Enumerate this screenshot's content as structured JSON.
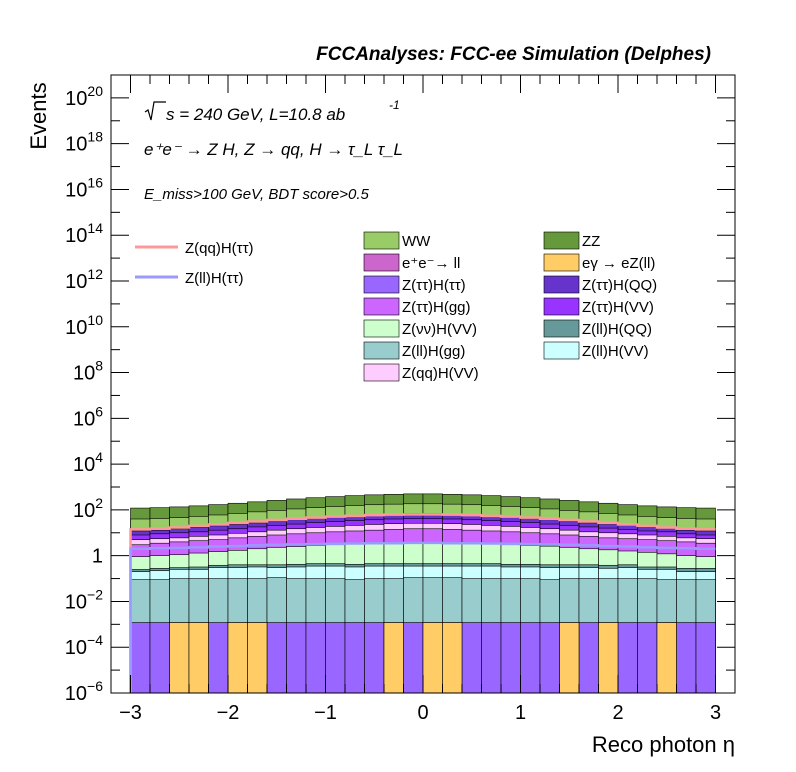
{
  "header_title": "FCCAnalyses: FCC-ee Simulation (Delphes)",
  "info": {
    "energy": "s = 240 GeV, L=10.8 ab",
    "energy_sup": "-1",
    "process": "e⁺e⁻ → Z H, Z → qq, H → τ_L τ_L",
    "cuts": "E_miss>100 GeV, BDT score>0.5"
  },
  "colors": {
    "WW": "#99cc66",
    "ZZ": "#66993b",
    "ee_ll": "#cc66cc",
    "egamma_eZll": "#ffcc66",
    "ztautau_htautau": "#9966ff",
    "ztautau_hQQ": "#6633cc",
    "ztautau_hgg": "#cc66ff",
    "ztautau_hVV": "#9933ff",
    "znunu_hVV": "#ccffcc",
    "zll_hQQ": "#669999",
    "zll_hgg": "#99cccc",
    "zll_hVV": "#ccffff",
    "zqq_hVV": "#ffccff",
    "sig_qq": "#ff9999",
    "sig_ll": "#9999ff"
  },
  "chart_data": {
    "type": "bar",
    "title": "FCCAnalyses: FCC-ee Simulation (Delphes)",
    "xlabel": "Reco photon η",
    "ylabel": "Events",
    "xlim": [
      -3.2,
      3.2
    ],
    "ylim": [
      1e-06,
      1e+21
    ],
    "log_y": true,
    "stacked": true,
    "bin_edges": [
      -3.0,
      -2.8,
      -2.6,
      -2.4,
      -2.2,
      -2.0,
      -1.8,
      -1.6,
      -1.4,
      -1.2,
      -1.0,
      -0.8,
      -0.6,
      -0.4,
      -0.2,
      0.0,
      0.2,
      0.4,
      0.6,
      0.8,
      1.0,
      1.2,
      1.4,
      1.6,
      1.8,
      2.0,
      2.2,
      2.4,
      2.6,
      2.8,
      3.0
    ],
    "x_ticks": [
      -3,
      -2,
      -1,
      0,
      1,
      2,
      3
    ],
    "x_tick_labels": [
      "−3",
      "−2",
      "−1",
      "0",
      "1",
      "2",
      "3"
    ],
    "y_ticks_major": [
      1e-06,
      0.0001,
      0.01,
      1,
      100.0,
      10000.0,
      1000000.0,
      100000000.0,
      10000000000.0,
      1000000000000.0,
      100000000000000.0,
      1e+16,
      1e+18,
      1e+20
    ],
    "y_tick_labels": [
      {
        "base": "10",
        "exp": "−6"
      },
      {
        "base": "10",
        "exp": "−4"
      },
      {
        "base": "10",
        "exp": "−2"
      },
      {
        "base": "1",
        "exp": ""
      },
      {
        "base": "10",
        "exp": "2"
      },
      {
        "base": "10",
        "exp": "4"
      },
      {
        "base": "10",
        "exp": "6"
      },
      {
        "base": "10",
        "exp": "8"
      },
      {
        "base": "10",
        "exp": "10"
      },
      {
        "base": "10",
        "exp": "12"
      },
      {
        "base": "10",
        "exp": "14"
      },
      {
        "base": "10",
        "exp": "16"
      },
      {
        "base": "10",
        "exp": "18"
      },
      {
        "base": "10",
        "exp": "20"
      }
    ],
    "stack_cumulative_tops": [
      {
        "name": "egamma → eZ(ll)",
        "color_key": "egamma_eZll",
        "values": [
          1e-06,
          1e-06,
          0.0012,
          0.0012,
          1e-06,
          0.0012,
          0.0012,
          1e-06,
          1e-06,
          1e-06,
          1e-06,
          1e-06,
          1e-06,
          0.0012,
          1e-06,
          0.0012,
          0.0012,
          1e-06,
          1e-06,
          1e-06,
          1e-06,
          1e-06,
          0.0012,
          1e-06,
          0.0012,
          1e-06,
          1e-06,
          0.0012,
          1e-06,
          1e-06
        ]
      },
      {
        "name": "Z(ττ)H(ττ)",
        "color_key": "ztautau_htautau",
        "values": [
          0.0012,
          0.0012,
          0.0012,
          0.0012,
          0.0012,
          0.0012,
          0.0012,
          0.0012,
          0.0012,
          0.0012,
          0.0012,
          0.0012,
          0.0012,
          0.0012,
          0.0012,
          0.0012,
          0.0012,
          0.0012,
          0.0012,
          0.0012,
          0.0012,
          0.0012,
          0.0012,
          0.0012,
          0.0012,
          0.0012,
          0.0012,
          0.0012,
          0.0012,
          0.0012
        ]
      },
      {
        "name": "Z(ll)H(gg)",
        "color_key": "zll_hgg",
        "values": [
          0.09,
          0.09,
          0.1,
          0.1,
          0.1,
          0.1,
          0.1,
          0.11,
          0.1,
          0.1,
          0.1,
          0.09,
          0.1,
          0.1,
          0.11,
          0.11,
          0.11,
          0.1,
          0.1,
          0.1,
          0.1,
          0.09,
          0.1,
          0.1,
          0.1,
          0.1,
          0.1,
          0.09,
          0.09,
          0.09
        ]
      },
      {
        "name": "Z(ll)H(VV)",
        "color_key": "zll_hVV",
        "values": [
          0.2,
          0.22,
          0.25,
          0.25,
          0.3,
          0.3,
          0.32,
          0.3,
          0.32,
          0.35,
          0.35,
          0.32,
          0.35,
          0.35,
          0.35,
          0.35,
          0.35,
          0.35,
          0.35,
          0.32,
          0.32,
          0.3,
          0.3,
          0.3,
          0.28,
          0.3,
          0.25,
          0.25,
          0.2,
          0.2
        ]
      },
      {
        "name": "Z(ll)H(QQ)",
        "color_key": "zll_hQQ",
        "values": [
          0.25,
          0.28,
          0.3,
          0.32,
          0.38,
          0.4,
          0.4,
          0.4,
          0.42,
          0.45,
          0.45,
          0.42,
          0.45,
          0.45,
          0.45,
          0.45,
          0.45,
          0.45,
          0.45,
          0.42,
          0.42,
          0.4,
          0.4,
          0.4,
          0.38,
          0.4,
          0.32,
          0.32,
          0.28,
          0.28
        ]
      },
      {
        "name": "Z(νν)H(VV)",
        "color_key": "znunu_hVV",
        "values": [
          0.9,
          1.0,
          1.1,
          1.3,
          1.5,
          1.7,
          2.0,
          2.3,
          2.5,
          2.8,
          3.0,
          3.2,
          3.4,
          3.5,
          3.6,
          3.6,
          3.5,
          3.4,
          3.2,
          3.0,
          2.8,
          2.6,
          2.3,
          2.0,
          1.8,
          1.6,
          1.4,
          1.2,
          1.0,
          0.9
        ]
      },
      {
        "name": "Z(ττ)H(gg)",
        "color_key": "ztautau_hgg",
        "values": [
          3,
          3.5,
          4,
          4.5,
          5,
          6,
          7,
          8,
          9,
          10,
          11,
          12,
          13,
          14,
          15,
          15,
          14,
          13,
          12,
          11,
          10,
          9,
          8,
          7,
          6,
          5.5,
          5,
          4.5,
          4,
          3.5
        ]
      },
      {
        "name": "Z(qq)H(VV)",
        "color_key": "zqq_hVV",
        "values": [
          5,
          5.5,
          6,
          7,
          8,
          9.5,
          11,
          13,
          15,
          17,
          19,
          21,
          23,
          25,
          26,
          26,
          25,
          23,
          21,
          19,
          17,
          15,
          13,
          11,
          10,
          9,
          8,
          7,
          6,
          5.5
        ]
      },
      {
        "name": "Z(ττ)H(VV)",
        "color_key": "ztautau_hVV",
        "values": [
          8,
          9,
          10,
          11,
          13,
          15,
          18,
          21,
          24,
          28,
          31,
          34,
          37,
          40,
          42,
          42,
          40,
          37,
          34,
          31,
          28,
          24,
          21,
          18,
          16,
          14,
          12,
          11,
          9,
          8
        ]
      },
      {
        "name": "Z(ττ)H(QQ)",
        "color_key": "ztautau_hQQ",
        "values": [
          12,
          13,
          15,
          17,
          20,
          23,
          27,
          32,
          37,
          42,
          47,
          52,
          57,
          61,
          64,
          64,
          61,
          57,
          52,
          47,
          42,
          37,
          32,
          27,
          24,
          21,
          18,
          16,
          13,
          12
        ]
      },
      {
        "name": "e⁺e⁻→ ll",
        "color_key": "ee_ll",
        "values": [
          14,
          15,
          17,
          19,
          22,
          26,
          30,
          35,
          40,
          46,
          52,
          57,
          62,
          67,
          70,
          70,
          67,
          62,
          57,
          52,
          46,
          40,
          35,
          30,
          26,
          23,
          20,
          18,
          15,
          14
        ]
      },
      {
        "name": "WW",
        "color_key": "WW",
        "values": [
          40,
          42,
          46,
          52,
          60,
          70,
          82,
          95,
          110,
          125,
          140,
          155,
          168,
          178,
          185,
          185,
          178,
          168,
          155,
          140,
          125,
          110,
          95,
          82,
          70,
          60,
          52,
          46,
          42,
          40
        ]
      },
      {
        "name": "ZZ",
        "color_key": "ZZ",
        "values": [
          120,
          125,
          135,
          150,
          170,
          195,
          225,
          260,
          300,
          340,
          380,
          420,
          455,
          480,
          500,
          500,
          480,
          455,
          420,
          380,
          340,
          300,
          260,
          225,
          195,
          170,
          150,
          135,
          125,
          120
        ]
      }
    ],
    "overlay_series": [
      {
        "name": "Z(qq)H(ττ)",
        "color_key": "sig_qq",
        "values": [
          14,
          15,
          17,
          20,
          23,
          27,
          31,
          36,
          41,
          46,
          51,
          55,
          59,
          62,
          64,
          64,
          62,
          59,
          55,
          51,
          46,
          41,
          36,
          31,
          27,
          23,
          20,
          17,
          15,
          14
        ]
      },
      {
        "name": "Z(ll)H(ττ)",
        "color_key": "sig_ll",
        "values": [
          2,
          2.1,
          2.2,
          2.3,
          2.5,
          2.6,
          2.8,
          3.0,
          3.1,
          3.2,
          3.3,
          3.4,
          3.5,
          3.5,
          3.6,
          3.6,
          3.5,
          3.5,
          3.4,
          3.3,
          3.2,
          3.1,
          3.0,
          2.8,
          2.6,
          2.5,
          2.3,
          2.2,
          2.1,
          2.0
        ]
      }
    ],
    "legend": {
      "left": [
        {
          "label": "Z(qq)H(ττ)",
          "color_key": "sig_qq",
          "kind": "line"
        },
        {
          "label": "Z(ll)H(ττ)",
          "color_key": "sig_ll",
          "kind": "line"
        }
      ],
      "col1": [
        {
          "label": "WW",
          "color_key": "WW"
        },
        {
          "label": "e⁺e⁻→ ll",
          "color_key": "ee_ll"
        },
        {
          "label": "Z(ττ)H(ττ)",
          "color_key": "ztautau_htautau"
        },
        {
          "label": "Z(ττ)H(gg)",
          "color_key": "ztautau_hgg"
        },
        {
          "label": "Z(νν)H(VV)",
          "color_key": "znunu_hVV"
        },
        {
          "label": "Z(ll)H(gg)",
          "color_key": "zll_hgg"
        },
        {
          "label": "Z(qq)H(VV)",
          "color_key": "zqq_hVV"
        }
      ],
      "col2": [
        {
          "label": "ZZ",
          "color_key": "ZZ"
        },
        {
          "label": "eγ → eZ(ll)",
          "color_key": "egamma_eZll"
        },
        {
          "label": "Z(ττ)H(QQ)",
          "color_key": "ztautau_hQQ"
        },
        {
          "label": "Z(ττ)H(VV)",
          "color_key": "ztautau_hVV"
        },
        {
          "label": "Z(ll)H(QQ)",
          "color_key": "zll_hQQ"
        },
        {
          "label": "Z(ll)H(VV)",
          "color_key": "zll_hVV"
        }
      ]
    }
  }
}
